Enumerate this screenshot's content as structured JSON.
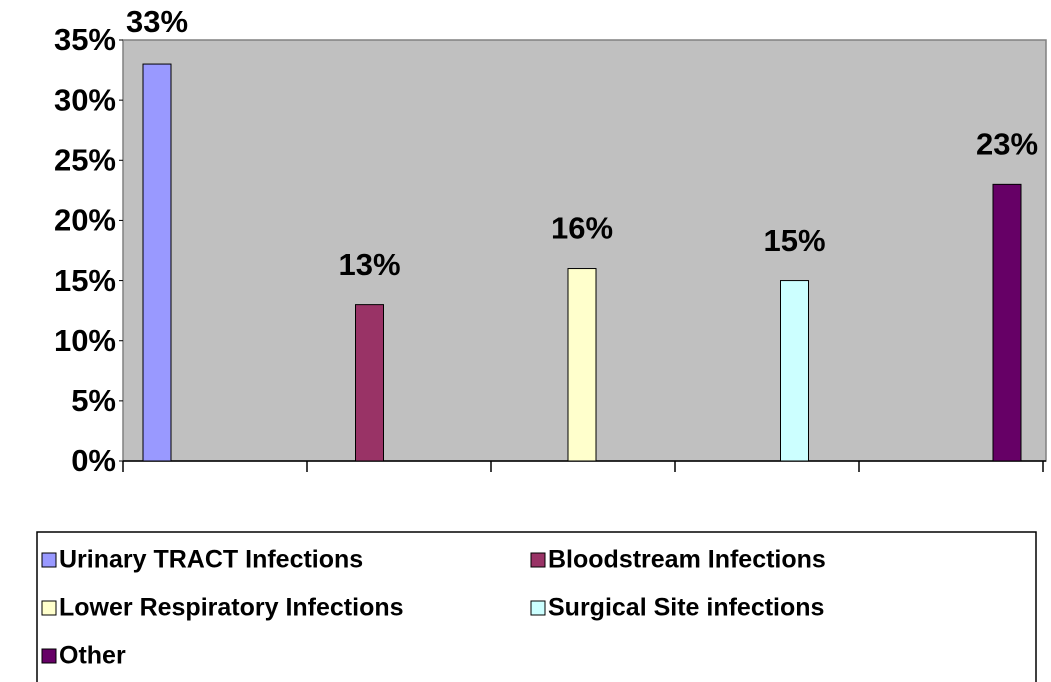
{
  "chart_data": {
    "type": "bar",
    "categories": [
      null
    ],
    "series": [
      {
        "name": "Urinary TRACT Infections",
        "color": "#9999ff",
        "values": [
          33
        ],
        "value_labels": [
          "33%"
        ]
      },
      {
        "name": "Bloodstream Infections",
        "color": "#993366",
        "values": [
          13
        ],
        "value_labels": [
          "13%"
        ]
      },
      {
        "name": "Lower Respiratory Infections",
        "color": "#ffffcc",
        "values": [
          16
        ],
        "value_labels": [
          "16%"
        ]
      },
      {
        "name": "Surgical Site infections",
        "color": "#ccffff",
        "values": [
          15
        ],
        "value_labels": [
          "15%"
        ]
      },
      {
        "name": "Other",
        "color": "#660066",
        "values": [
          23
        ],
        "value_labels": [
          "23%"
        ]
      }
    ],
    "ylim": [
      0,
      35
    ],
    "yticks": [
      {
        "value": 0,
        "label": "0%"
      },
      {
        "value": 5,
        "label": "5%"
      },
      {
        "value": 10,
        "label": "10%"
      },
      {
        "value": 15,
        "label": "15%"
      },
      {
        "value": 20,
        "label": "20%"
      },
      {
        "value": 25,
        "label": "25%"
      },
      {
        "value": 30,
        "label": "30%"
      },
      {
        "value": 35,
        "label": "35%"
      }
    ],
    "plot_background": "#c0c0c0",
    "legend": "bottom"
  }
}
